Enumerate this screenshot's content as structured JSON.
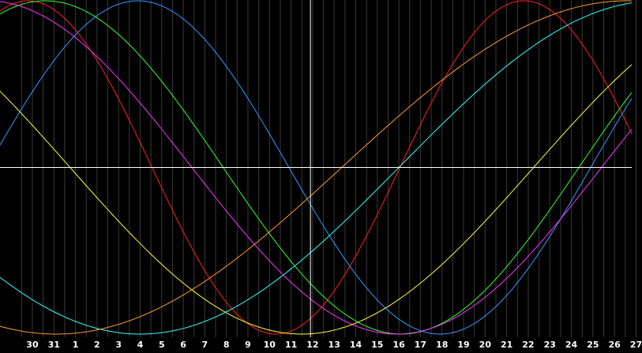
{
  "colors": {
    "background": "#000000",
    "gridline": "#3a3a3a",
    "crosshair": "#ffffff",
    "tick_text": "#ffffff"
  },
  "chart_data": {
    "type": "line",
    "x_tick_labels": [
      "30",
      "31",
      "1",
      "2",
      "3",
      "4",
      "5",
      "6",
      "7",
      "8",
      "9",
      "10",
      "11",
      "12",
      "13",
      "14",
      "15",
      "16",
      "17",
      "18",
      "19",
      "20",
      "21",
      "22",
      "23",
      "24",
      "25",
      "26",
      "27"
    ],
    "x_unit": "day",
    "x_range": [
      28.5,
      57.8
    ],
    "y_range": [
      -1,
      1
    ],
    "crosshair": {
      "x": 42.9,
      "y": 0
    },
    "grid": "vertical",
    "series": [
      {
        "color": "#ff2020",
        "period": 23,
        "peak_day": 52.8
      },
      {
        "color": "#3399ff",
        "period": 28,
        "peak_day": 34.9
      },
      {
        "color": "#33ff33",
        "period": 33,
        "peak_day": 30.6
      },
      {
        "color": "#ff33ff",
        "period": 38,
        "peak_day": 27.9
      },
      {
        "color": "#ffff40",
        "period": 43,
        "peak_day": 64.0
      },
      {
        "color": "#33ffff",
        "period": 48,
        "peak_day": 59.0
      },
      {
        "color": "#ff9933",
        "period": 53,
        "peak_day": 57.6
      }
    ]
  }
}
